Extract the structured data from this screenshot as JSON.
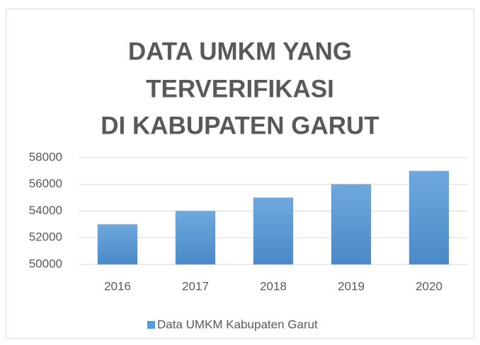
{
  "chart_data": {
    "type": "bar",
    "title": [
      "DATA UMKM YANG",
      "TERVERIFIKASI",
      "DI KABUPATEN GARUT"
    ],
    "categories": [
      "2016",
      "2017",
      "2018",
      "2019",
      "2020"
    ],
    "series": [
      {
        "name": "Data UMKM Kabupaten Garut",
        "color": "#5b9bd5",
        "values": [
          53000,
          54000,
          55000,
          56000,
          57000
        ]
      }
    ],
    "ylim": [
      50000,
      58000
    ],
    "yticks": [
      50000,
      52000,
      54000,
      56000,
      58000
    ],
    "grid": true,
    "legend": "bottom"
  }
}
